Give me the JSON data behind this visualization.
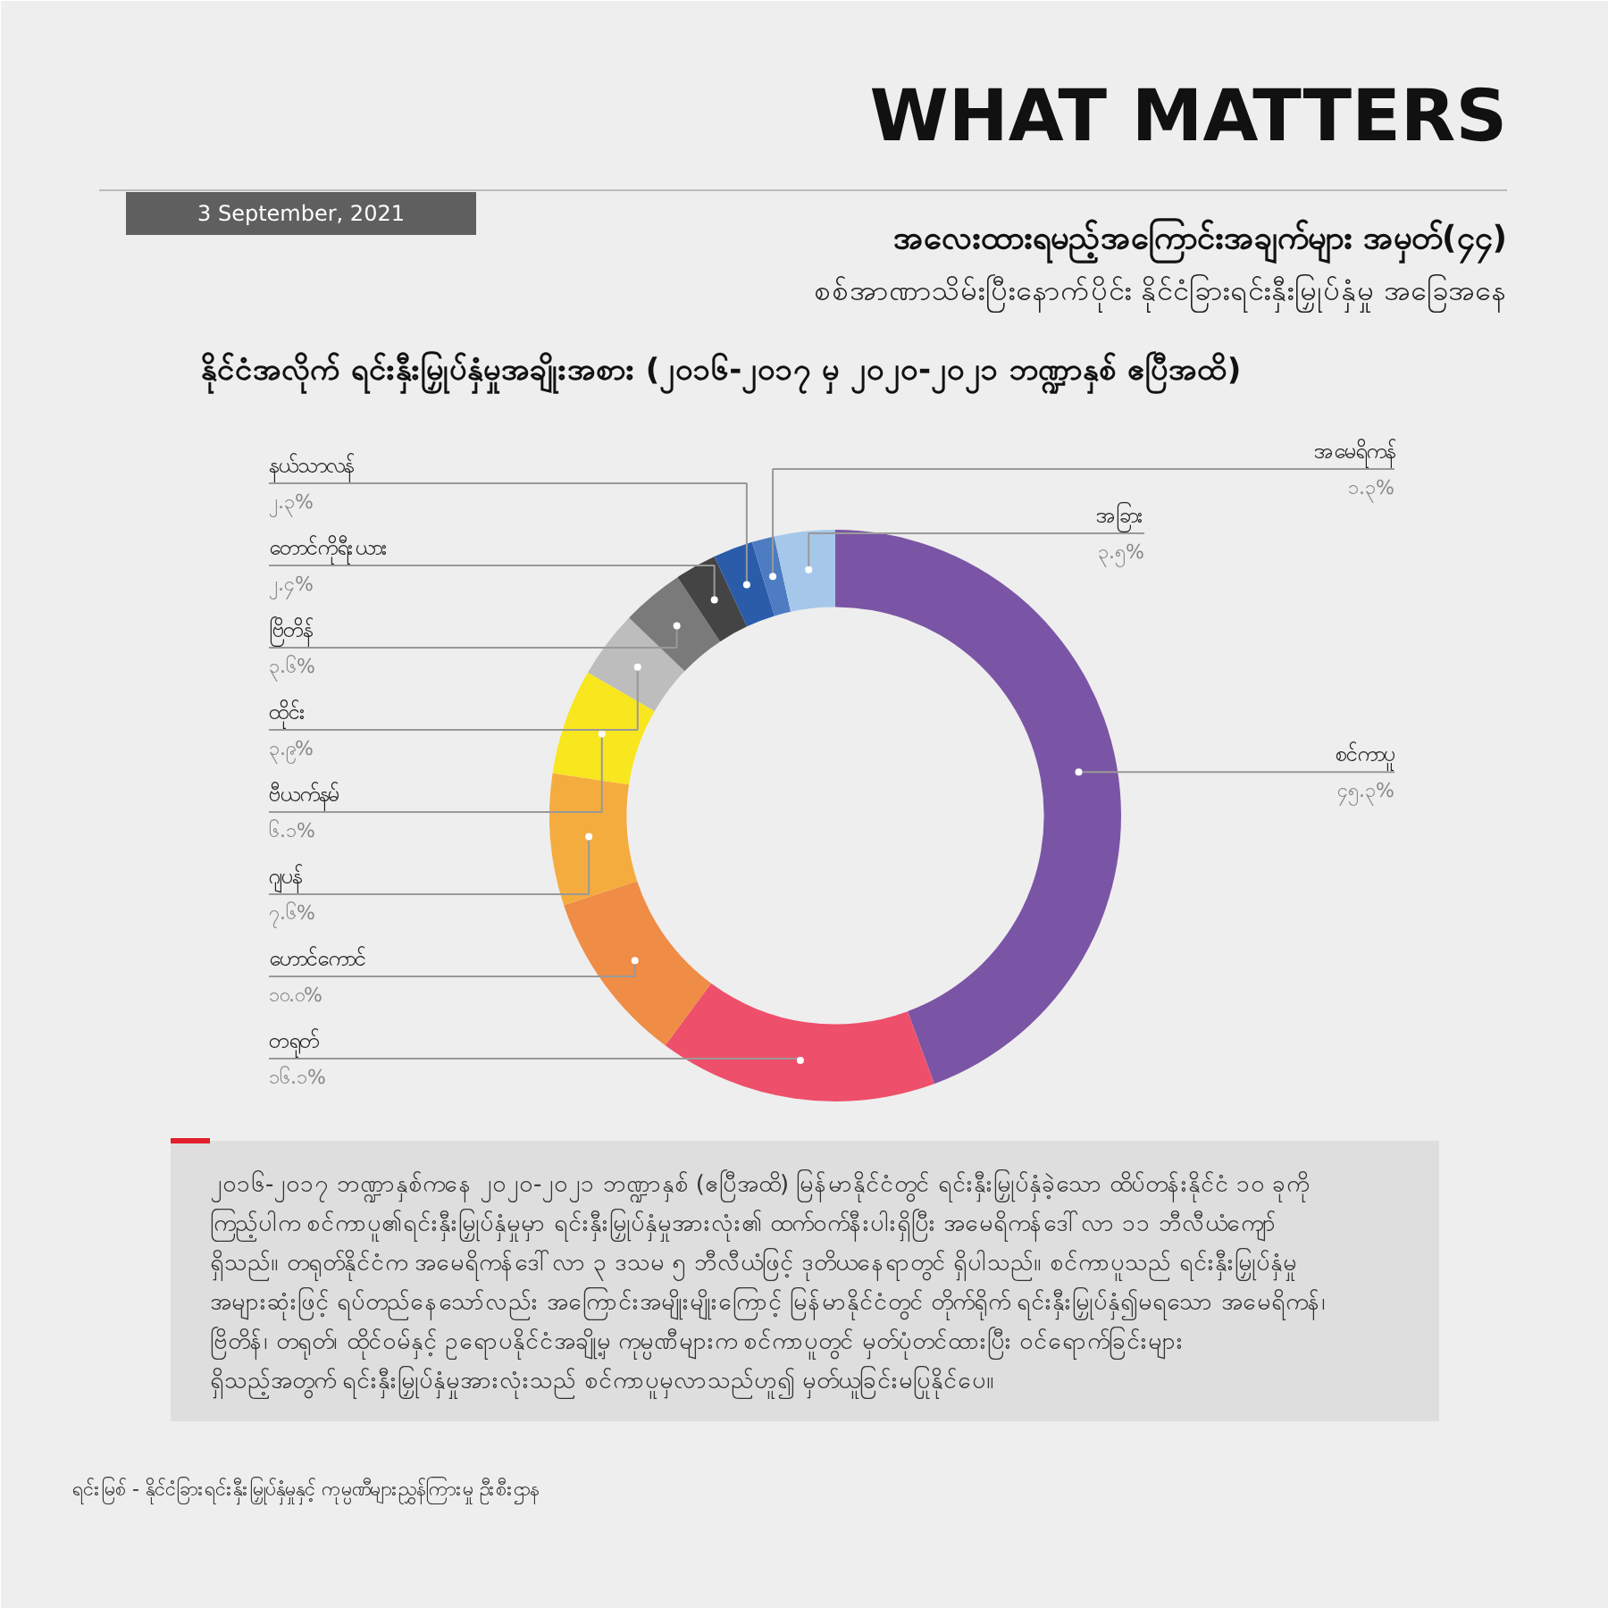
{
  "chart_data": {
    "type": "donut",
    "title": "အလေးထားရမည့်အကြောင်းအချက်များ အမှတ်(၄၄)",
    "subtitle": "စစ်အာဏာသိမ်းပြီးနောက်ပိုင်း နိုင်ငံခြားရင်းနှီးမြှုပ်နှံမှု အခြေအနေ",
    "categories": [
      "စင်ကာပူ",
      "တရုတ်",
      "ဟောင်ကောင်",
      "ဂျပန်",
      "ဗီယက်နမ်",
      "ထိုင်း",
      "ဗြိတိန်",
      "တောင်ကိုရီးယား",
      "နယ်သာလန်",
      "အမေရိကန်",
      "အခြား"
    ],
    "values": [
      45.3,
      16.1,
      10.0,
      7.6,
      6.1,
      3.9,
      3.6,
      2.4,
      2.3,
      1.3,
      3.5
    ],
    "value_labels": [
      "၄၅.၃%",
      "၁၆.၁%",
      "၁၀.၀%",
      "၇.၆%",
      "၆.၁%",
      "၃.၉%",
      "၃.၆%",
      "၂.၄%",
      "၂.၃%",
      "၁.၃%",
      "၃.၅%"
    ],
    "colors": [
      "#7b55a5",
      "#ee4f6a",
      "#ef8c45",
      "#f5ac3f",
      "#f8e61f",
      "#bdbdbd",
      "#7a7a7a",
      "#444444",
      "#2a5caa",
      "#4d7cc3",
      "#a5c8ea"
    ],
    "annotations": [
      "နိုင်ငံအလိုက် ရင်းနှီးမြှုပ်နှံမှုအချိုးအစား (၂၀၁၆-၂၀၁၇ မှ ၂၀၂၀-၂၀၂၁ ဘဏ္ဍာနှစ် ဧပြီအထိ)",
      "WHAT MATTERS",
      "3 September, 2021",
      "၂၀၁၆-၂၀၁၇ ဘဏ္ဍာနှစ်ကနေ ၂၀၂၀-၂၀၂၁ ဘဏ္ဍာနှစ် (ဧပြီအထိ) မြန်မာနိုင်ငံတွင် ရင်းနှီးမြှုပ်နှံခဲ့သော ထိပ်တန်းနိုင်ငံ ၁၀ ခုကို ကြည့်ပါက စင်ကာပူ၏ရင်းနှီးမြှုပ်နှံမှုမှာ ရင်းနှီးမြှုပ်နှံမှုအားလုံး၏ ထက်ဝက်နီးပါးရှိပြီး အမေရိကန်ဒေါ်လာ ၁၁ ဘီလီယံကျော် ရှိသည်။ တရုတ်နိုင်ငံက အမေရိကန်ဒေါ်လာ ၃ ဒသမ ၅ ဘီလီယံဖြင့် ဒုတိယနေရာတွင် ရှိပါသည်။ စင်ကာပူသည် ရင်းနှီးမြှုပ်နှံမှု အများဆုံးဖြင့် ရပ်တည်နေသော်လည်း အကြောင်းအမျိုးမျိုးကြောင့် မြန်မာနိုင်ငံတွင် တိုက်ရိုက် ရင်းနှီးမြှုပ်နှံ၍မရသော အမေရိကန်၊ ဗြိတိန်၊ တရုတ်၊ ထိုင်ဝမ်နှင့် ဥရောပနိုင်ငံအချို့မှ ကုမ္ပဏီများက စင်ကာပူတွင် မှတ်ပုံတင်ထားပြီး ဝင်ရောက်ခြင်းများ ရှိသည့်အတွက် ရင်းနှီးမြှုပ်နှံမှုအားလုံးသည် စင်ကာပူမှလာသည်ဟူ၍ မှတ်ယူခြင်းမပြုနိုင်ပေ။",
      "ရင်းမြစ် -    နိုင်ငံခြားရင်းနှီးမြှုပ်နှံမှုနှင့် ကုမ္ပဏီများညွှန်ကြားမှု ဦးစီးဌာန"
    ]
  }
}
